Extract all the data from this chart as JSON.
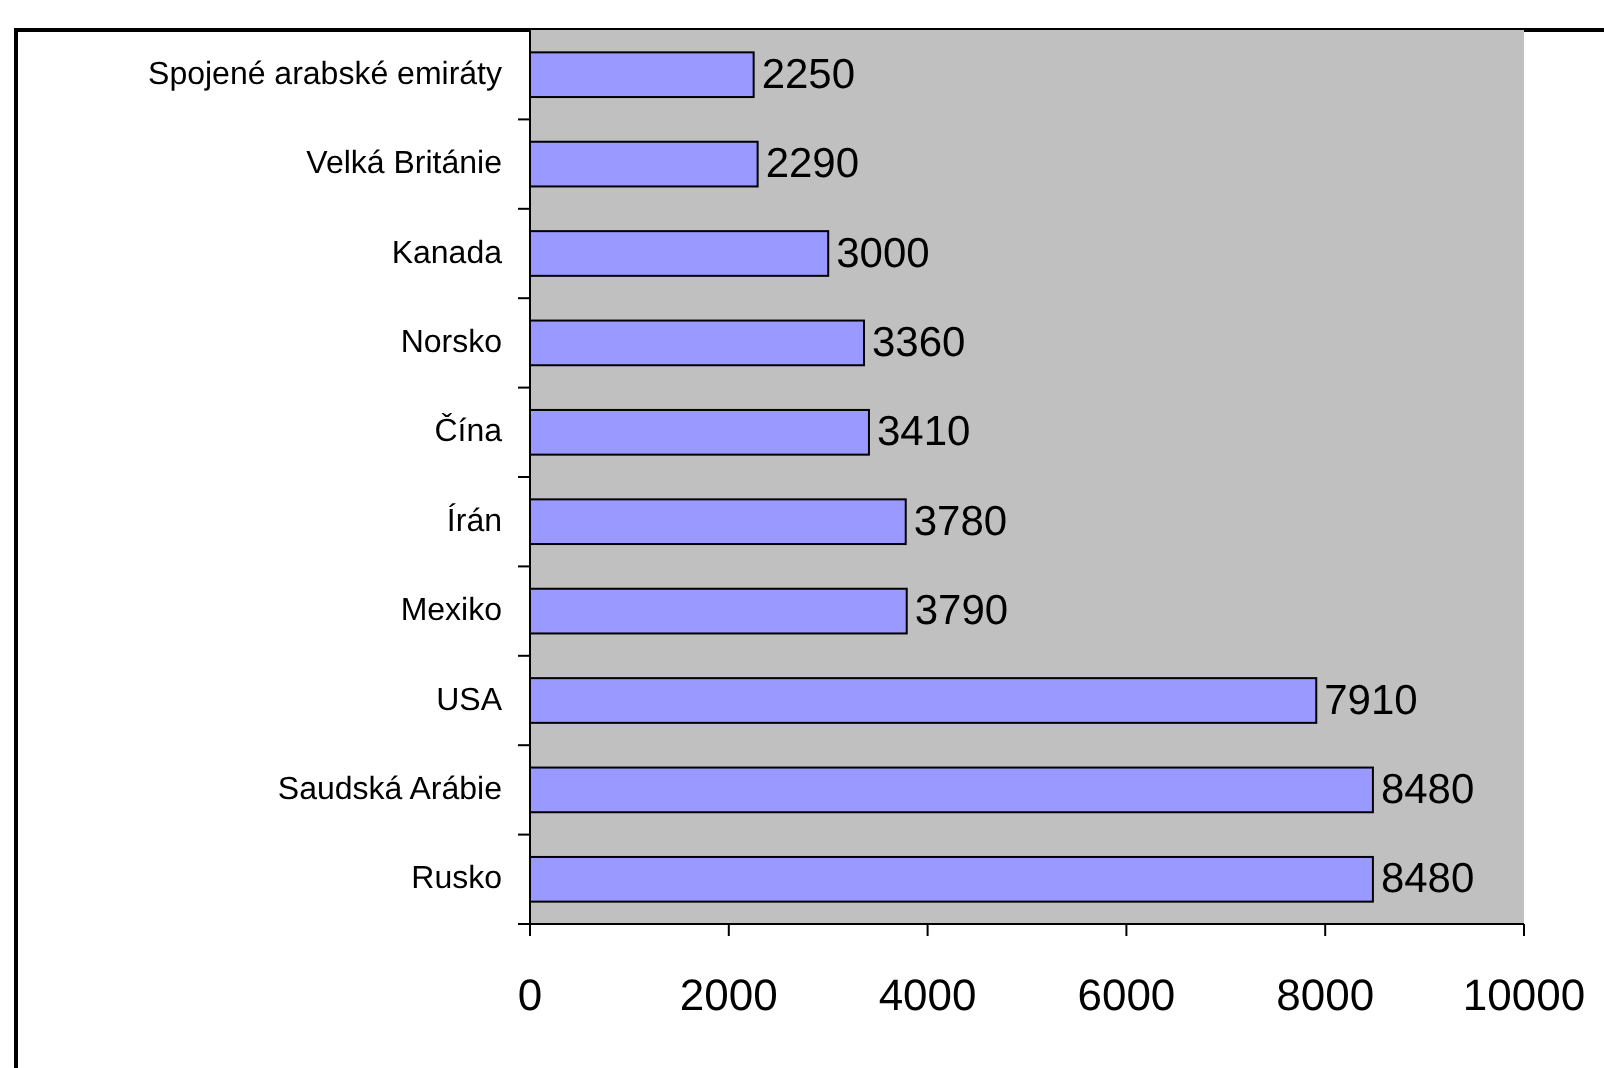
{
  "chart_data": {
    "type": "bar",
    "orientation": "horizontal",
    "categories": [
      "Spojené arabské emiráty",
      "Velká Británie",
      "Kanada",
      "Norsko",
      "Čína",
      "Írán",
      "Mexiko",
      "USA",
      "Saudská Arábie",
      "Rusko"
    ],
    "values": [
      2250,
      2290,
      3000,
      3360,
      3410,
      3780,
      3790,
      7910,
      8480,
      8480
    ],
    "color": "#9999ff",
    "data_labels": true,
    "xlim": [
      0,
      10000
    ],
    "xticks": [
      0,
      2000,
      4000,
      6000,
      8000,
      10000
    ],
    "grid": false
  }
}
